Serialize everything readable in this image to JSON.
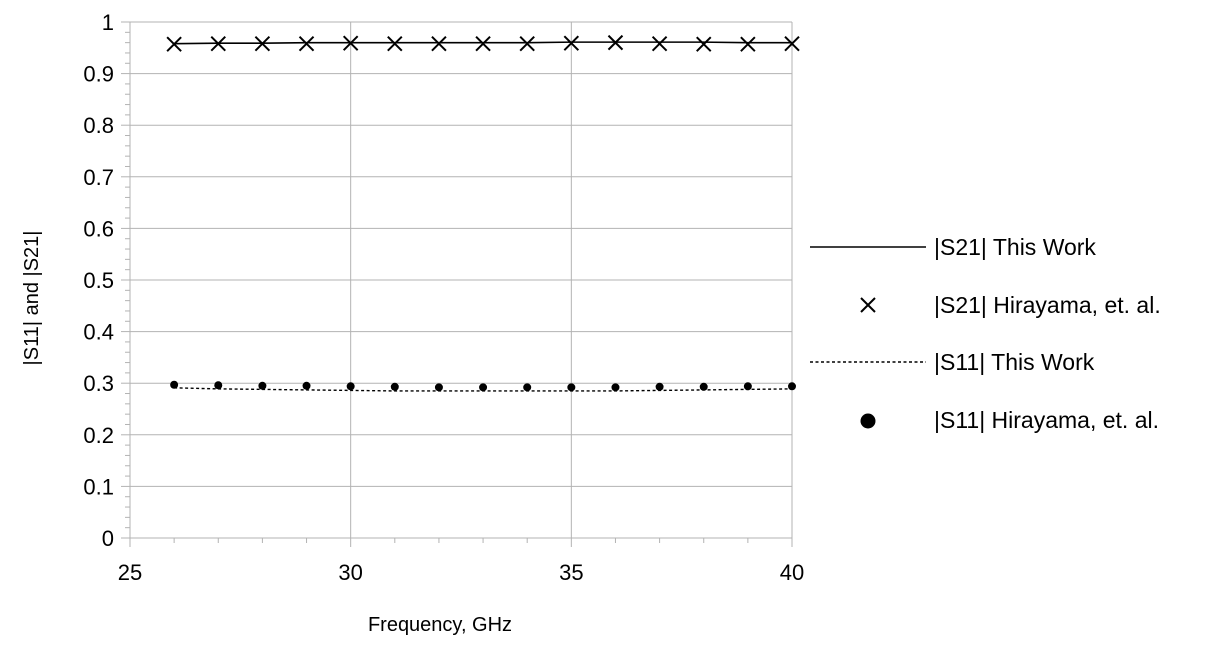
{
  "chart_data": {
    "type": "line",
    "title": "",
    "xlabel": "Frequency, GHz",
    "ylabel": "|S11| and |S21|",
    "xlim": [
      25,
      40
    ],
    "ylim": [
      0,
      1
    ],
    "x_ticks": [
      "25",
      "30",
      "35",
      "40"
    ],
    "y_ticks": [
      "0",
      "0.1",
      "0.2",
      "0.3",
      "0.4",
      "0.5",
      "0.6",
      "0.7",
      "0.8",
      "0.9",
      "1"
    ],
    "grid": true,
    "legend_position": "right",
    "series": [
      {
        "name": "|S21| This Work",
        "style": "solid-line",
        "color": "#000000",
        "x": [
          26,
          27,
          28,
          29,
          30,
          31,
          32,
          33,
          34,
          35,
          36,
          37,
          38,
          39,
          40
        ],
        "y": [
          0.958,
          0.959,
          0.959,
          0.96,
          0.96,
          0.96,
          0.96,
          0.96,
          0.96,
          0.961,
          0.961,
          0.961,
          0.961,
          0.96,
          0.96
        ]
      },
      {
        "name": "|S21| Hirayama, et. al.",
        "style": "x-marker",
        "color": "#000000",
        "x": [
          26,
          27,
          28,
          29,
          30,
          31,
          32,
          33,
          34,
          35,
          36,
          37,
          38,
          39,
          40
        ],
        "y": [
          0.957,
          0.958,
          0.958,
          0.958,
          0.959,
          0.958,
          0.958,
          0.958,
          0.958,
          0.959,
          0.96,
          0.958,
          0.957,
          0.957,
          0.958
        ]
      },
      {
        "name": "|S11| This Work",
        "style": "dotted-line",
        "color": "#000000",
        "x": [
          26,
          27,
          28,
          29,
          30,
          31,
          32,
          33,
          34,
          35,
          36,
          37,
          38,
          39,
          40
        ],
        "y": [
          0.291,
          0.289,
          0.288,
          0.287,
          0.286,
          0.285,
          0.285,
          0.285,
          0.285,
          0.285,
          0.285,
          0.286,
          0.287,
          0.288,
          0.289
        ]
      },
      {
        "name": "|S11| Hirayama, et. al.",
        "style": "dot-marker",
        "color": "#000000",
        "x": [
          26,
          27,
          28,
          29,
          30,
          31,
          32,
          33,
          34,
          35,
          36,
          37,
          38,
          39,
          40
        ],
        "y": [
          0.297,
          0.296,
          0.295,
          0.295,
          0.294,
          0.293,
          0.292,
          0.292,
          0.292,
          0.292,
          0.292,
          0.293,
          0.293,
          0.294,
          0.294
        ]
      }
    ]
  }
}
